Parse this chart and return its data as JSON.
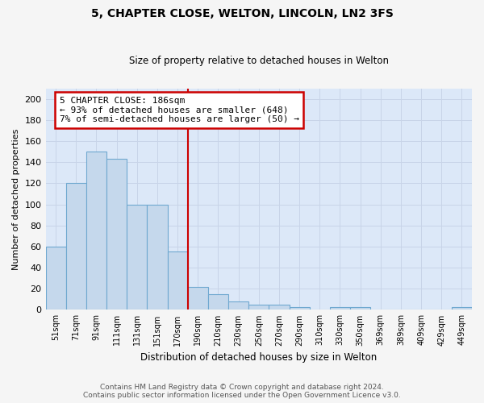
{
  "title": "5, CHAPTER CLOSE, WELTON, LINCOLN, LN2 3FS",
  "subtitle": "Size of property relative to detached houses in Welton",
  "xlabel": "Distribution of detached houses by size in Welton",
  "ylabel": "Number of detached properties",
  "categories": [
    "51sqm",
    "71sqm",
    "91sqm",
    "111sqm",
    "131sqm",
    "151sqm",
    "170sqm",
    "190sqm",
    "210sqm",
    "230sqm",
    "250sqm",
    "270sqm",
    "290sqm",
    "310sqm",
    "330sqm",
    "350sqm",
    "369sqm",
    "389sqm",
    "409sqm",
    "429sqm",
    "449sqm"
  ],
  "values": [
    60,
    120,
    150,
    143,
    100,
    100,
    55,
    22,
    15,
    8,
    5,
    5,
    3,
    0,
    3,
    3,
    0,
    0,
    0,
    0,
    3
  ],
  "bar_color": "#c5d8ec",
  "bar_edge_color": "#6fa8d0",
  "annotation_line1": "5 CHAPTER CLOSE: 186sqm",
  "annotation_line2": "← 93% of detached houses are smaller (648)",
  "annotation_line3": "7% of semi-detached houses are larger (50) →",
  "annotation_box_color": "#ffffff",
  "annotation_box_edge": "#cc0000",
  "vline_color": "#cc0000",
  "grid_color": "#c8d4e8",
  "background_color": "#dce8f8",
  "fig_background": "#f5f5f5",
  "ylim": [
    0,
    210
  ],
  "yticks": [
    0,
    20,
    40,
    60,
    80,
    100,
    120,
    140,
    160,
    180,
    200
  ],
  "vline_index": 7,
  "footer_line1": "Contains HM Land Registry data © Crown copyright and database right 2024.",
  "footer_line2": "Contains public sector information licensed under the Open Government Licence v3.0."
}
